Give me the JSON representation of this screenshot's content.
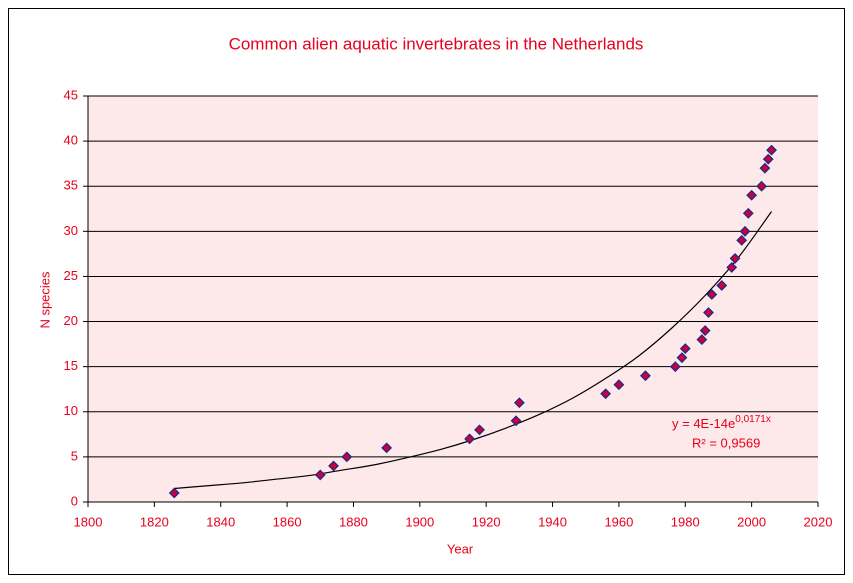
{
  "chart_data": {
    "type": "scatter",
    "title": "Common alien aquatic invertebrates in the Netherlands",
    "x_label": "Year",
    "y_label": "N species",
    "x": [
      1826,
      1870,
      1874,
      1878,
      1890,
      1915,
      1918,
      1929,
      1930,
      1956,
      1960,
      1968,
      1977,
      1979,
      1980,
      1985,
      1986,
      1987,
      1988,
      1991,
      1994,
      1995,
      1997,
      1998,
      1999,
      2000,
      2003,
      2004,
      2005,
      2006
    ],
    "values": [
      1,
      3,
      4,
      5,
      6,
      7,
      8,
      9,
      11,
      12,
      13,
      14,
      15,
      16,
      17,
      18,
      19,
      21,
      23,
      24,
      26,
      27,
      29,
      30,
      32,
      34,
      35,
      37,
      38,
      39
    ],
    "marker_fill": "#cc0033",
    "marker_stroke": "#1f2a8f",
    "trendline": {
      "x": [
        1826,
        1836,
        1846,
        1856,
        1866,
        1876,
        1886,
        1896,
        1906,
        1916,
        1926,
        1936,
        1946,
        1956,
        1966,
        1976,
        1986,
        1996,
        2006
      ],
      "values": [
        1.5,
        1.8,
        2.1,
        2.5,
        2.9,
        3.5,
        4.1,
        4.9,
        5.8,
        6.9,
        8.2,
        9.7,
        11.5,
        13.7,
        16.2,
        19.3,
        22.9,
        27.1,
        32.2
      ],
      "color": "#000000",
      "equation": "y = 4E-14e",
      "equation_exponent": "0,0171x",
      "r_squared": "R² = 0,9569"
    },
    "xlim": [
      1800,
      2020
    ],
    "xticks": [
      1800,
      1820,
      1840,
      1860,
      1880,
      1900,
      1920,
      1940,
      1960,
      1980,
      2000,
      2020
    ],
    "ylim": [
      0,
      45
    ],
    "yticks": [
      0,
      5,
      10,
      15,
      20,
      25,
      30,
      35,
      40,
      45
    ],
    "grid": true,
    "plot_background": "#fde9e9",
    "text_color": "#e8001c"
  }
}
